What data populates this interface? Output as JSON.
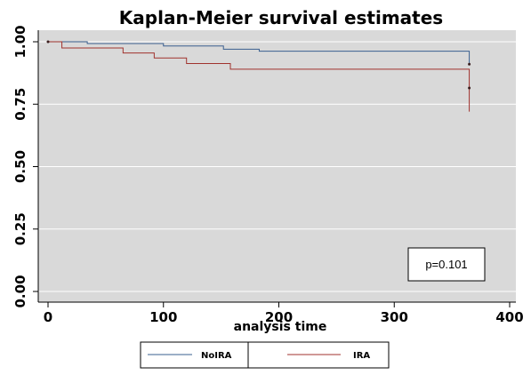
{
  "chart_data": {
    "type": "line",
    "title": "Kaplan-Meier survival estimates",
    "xlabel": "analysis time",
    "ylabel": "",
    "xlim": [
      0,
      400
    ],
    "ylim": [
      0,
      1
    ],
    "xticks": [
      {
        "value": 0,
        "label": "0"
      },
      {
        "value": 100,
        "label": "100"
      },
      {
        "value": 200,
        "label": "200"
      },
      {
        "value": 300,
        "label": "300"
      },
      {
        "value": 400,
        "label": "400"
      }
    ],
    "yticks": [
      {
        "value": 0,
        "label": "0.00"
      },
      {
        "value": 0.25,
        "label": "0.25"
      },
      {
        "value": 0.5,
        "label": "0.50"
      },
      {
        "value": 0.75,
        "label": "0.75"
      },
      {
        "value": 1,
        "label": "1.00"
      }
    ],
    "grid": true,
    "legend_position": "bottom",
    "annotation": "p=0.101",
    "series": [
      {
        "name": "NoIRA",
        "color": "#3a5f8f",
        "step": true,
        "points": [
          [
            0,
            1.0
          ],
          [
            34,
            0.993
          ],
          [
            100,
            0.983
          ],
          [
            152,
            0.97
          ],
          [
            183,
            0.962
          ],
          [
            365,
            0.91
          ]
        ]
      },
      {
        "name": "IRA",
        "color": "#a0322d",
        "step": true,
        "points": [
          [
            0,
            1.0
          ],
          [
            12,
            0.975
          ],
          [
            65,
            0.955
          ],
          [
            92,
            0.935
          ],
          [
            120,
            0.913
          ],
          [
            158,
            0.89
          ],
          [
            365,
            0.81
          ],
          [
            365,
            0.72
          ]
        ]
      }
    ],
    "censor_marks": [
      {
        "series": 0,
        "x": 0,
        "y": 1.0
      },
      {
        "series": 0,
        "x": 365,
        "y": 0.91
      },
      {
        "series": 1,
        "x": 365,
        "y": 0.815
      }
    ]
  }
}
